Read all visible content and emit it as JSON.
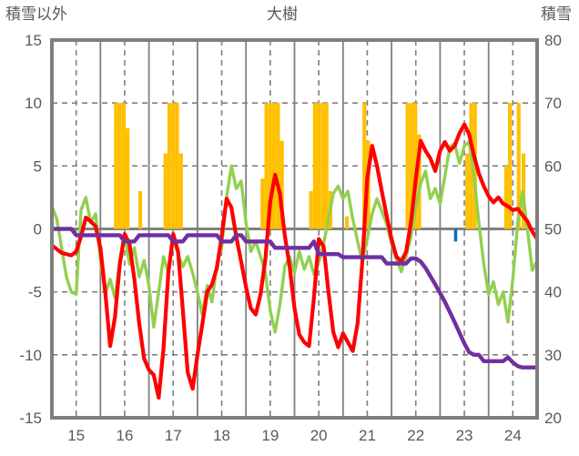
{
  "header": {
    "left_axis_title": "積雪以外",
    "title": "大樹",
    "right_axis_title": "積雪"
  },
  "colors": {
    "text": "#595959",
    "grid": "#808080",
    "border": "#7f7f7f",
    "red_line": "#ff0000",
    "green_line": "#92d050",
    "purple_line": "#7030a0",
    "orange_bars": "#ffc000",
    "blue_bar": "#0070c0",
    "background": "#ffffff"
  },
  "chart_data": {
    "type": "line",
    "title": "大樹",
    "left_axis": {
      "label": "積雪以外",
      "min": -15,
      "max": 15,
      "ticks": [
        "15",
        "10",
        "5",
        "0",
        "-5",
        "-10",
        "-15"
      ],
      "tick_values": [
        15,
        10,
        5,
        0,
        -5,
        -10,
        -15
      ]
    },
    "right_axis": {
      "label": "積雪",
      "min": 20,
      "max": 80,
      "ticks": [
        "80",
        "70",
        "60",
        "50",
        "40",
        "30",
        "20"
      ],
      "tick_values": [
        80,
        70,
        60,
        50,
        40,
        30,
        20
      ]
    },
    "x_axis": {
      "min": 14.5,
      "max": 24.5,
      "tick_labels": [
        "15",
        "16",
        "17",
        "18",
        "19",
        "20",
        "21",
        "22",
        "23",
        "24"
      ],
      "tick_values": [
        15,
        16,
        17,
        18,
        19,
        20,
        21,
        22,
        23,
        24
      ],
      "solid_gridlines_at": [
        15.5,
        16.5,
        17.5,
        18.5,
        19.5,
        20.5,
        21.5,
        22.5,
        23.5
      ],
      "dashed_gridlines_at": [
        15,
        16,
        17,
        18,
        19,
        20,
        21,
        22,
        23,
        24
      ]
    },
    "grid": {
      "horizontal_dashed_at": [
        10,
        5,
        -5,
        -10
      ],
      "zero_line_at": 0
    },
    "x_start": 14.5,
    "x_step": 0.1,
    "series": [
      {
        "name": "red_line",
        "axis": "left",
        "kind": "line",
        "color": "#ff0000",
        "values": [
          -1.3,
          -1.6,
          -1.9,
          -2.0,
          -2.1,
          -1.8,
          -0.6,
          0.9,
          0.6,
          0.2,
          -1.5,
          -5.0,
          -9.3,
          -7.0,
          -2.8,
          -0.4,
          -1.2,
          -4.0,
          -7.5,
          -10.3,
          -11.2,
          -11.6,
          -13.4,
          -9.5,
          -3.5,
          -0.4,
          -1.8,
          -6.5,
          -11.4,
          -12.7,
          -10.0,
          -7.6,
          -5.0,
          -4.4,
          -3.1,
          -0.6,
          2.4,
          1.7,
          -0.6,
          -2.6,
          -4.6,
          -6.3,
          -6.8,
          -5.2,
          -2.4,
          2.2,
          4.3,
          2.8,
          -0.5,
          -3.0,
          -6.3,
          -8.4,
          -9.0,
          -9.3,
          -5.5,
          -0.8,
          -1.4,
          -5.0,
          -8.2,
          -9.4,
          -8.3,
          -9.0,
          -9.7,
          -7.5,
          -2.5,
          4.0,
          6.6,
          5.0,
          3.0,
          1.0,
          -0.8,
          -2.2,
          -2.6,
          -1.8,
          0.5,
          4.0,
          7.0,
          6.2,
          5.6,
          4.6,
          6.2,
          6.9,
          6.2,
          6.6,
          7.6,
          8.3,
          7.5,
          5.8,
          4.4,
          3.4,
          2.6,
          2.1,
          2.5,
          2.0,
          1.8,
          1.5,
          1.6,
          1.1,
          0.6,
          -0.2,
          -0.8
        ]
      },
      {
        "name": "green_line",
        "axis": "left",
        "kind": "line",
        "color": "#92d050",
        "values": [
          1.8,
          0.8,
          -1.5,
          -3.8,
          -5.0,
          -5.2,
          1.5,
          2.5,
          0.5,
          1.2,
          -2.5,
          -5.2,
          -4.0,
          -5.5,
          -2.5,
          -0.5,
          -2.8,
          -1.5,
          -3.8,
          -2.5,
          -4.5,
          -7.8,
          -5.0,
          -2.2,
          -3.5,
          -0.8,
          -2.0,
          -3.0,
          -2.2,
          -3.5,
          -5.0,
          -6.8,
          -4.5,
          -5.8,
          -2.8,
          -1.5,
          2.5,
          5.0,
          3.2,
          3.8,
          0.5,
          -1.8,
          -1.0,
          -2.2,
          -3.5,
          -6.5,
          -8.2,
          -6.0,
          -3.0,
          -2.2,
          -3.5,
          -1.8,
          -3.2,
          -2.2,
          -3.6,
          -2.6,
          -1.2,
          0.8,
          2.8,
          3.4,
          2.4,
          3.0,
          0.8,
          -1.0,
          -2.6,
          -0.8,
          1.2,
          2.4,
          1.4,
          0.4,
          -1.2,
          -2.4,
          -3.4,
          -2.2,
          -0.6,
          1.8,
          3.6,
          4.6,
          2.4,
          3.2,
          2.0,
          4.2,
          6.5,
          6.8,
          5.2,
          6.6,
          6.9,
          4.2,
          0.5,
          -2.8,
          -5.2,
          -4.2,
          -6.0,
          -5.0,
          -7.4,
          -4.0,
          0.5,
          3.0,
          0.0,
          -3.3,
          -2.5
        ]
      },
      {
        "name": "purple_line",
        "axis": "right",
        "kind": "line",
        "color": "#7030a0",
        "values": [
          50,
          50,
          50,
          50,
          50,
          49,
          49,
          49,
          49,
          49,
          49,
          49,
          49,
          49,
          49,
          48,
          48,
          48,
          49,
          49,
          49,
          49,
          49,
          49,
          49,
          48,
          48,
          48,
          49,
          49,
          49,
          49,
          49,
          49,
          49,
          48,
          48,
          48,
          49,
          49,
          48,
          48,
          48,
          48,
          48,
          48,
          47,
          47,
          47,
          47,
          47,
          47,
          47,
          47,
          48,
          46,
          46,
          46,
          46,
          46,
          45.5,
          45.5,
          45.5,
          45.5,
          45.5,
          45.5,
          45.5,
          45.5,
          45.5,
          44.5,
          44.5,
          44.5,
          44.5,
          44.5,
          45.3,
          45.3,
          44.8,
          43.8,
          42.5,
          41.2,
          39.8,
          38.4,
          36.8,
          35.2,
          33.5,
          31.8,
          30.4,
          30.0,
          30.0,
          29.0,
          29.0,
          29.0,
          29.0,
          29.0,
          29.6,
          28.8,
          28.2,
          28.0,
          28.0,
          28.0,
          28.0
        ]
      },
      {
        "name": "orange_bars",
        "axis": "left",
        "kind": "bar",
        "color": "#ffc000",
        "bars": [
          [
            15.82,
            10
          ],
          [
            15.9,
            10
          ],
          [
            15.98,
            10
          ],
          [
            16.06,
            8
          ],
          [
            16.32,
            3
          ],
          [
            16.84,
            6
          ],
          [
            16.92,
            10
          ],
          [
            17.0,
            10
          ],
          [
            17.08,
            10
          ],
          [
            17.16,
            6
          ],
          [
            18.84,
            4
          ],
          [
            18.92,
            10
          ],
          [
            19.0,
            10
          ],
          [
            19.08,
            10
          ],
          [
            19.16,
            10
          ],
          [
            19.24,
            7
          ],
          [
            19.84,
            3
          ],
          [
            19.92,
            10
          ],
          [
            20.0,
            10
          ],
          [
            20.08,
            10
          ],
          [
            20.16,
            10
          ],
          [
            20.24,
            3
          ],
          [
            20.58,
            1
          ],
          [
            20.94,
            10
          ],
          [
            21.02,
            7
          ],
          [
            21.83,
            10
          ],
          [
            21.91,
            10
          ],
          [
            21.99,
            10
          ],
          [
            22.07,
            7.5
          ],
          [
            23.06,
            6
          ],
          [
            23.14,
            10
          ],
          [
            23.22,
            10
          ],
          [
            23.86,
            5
          ],
          [
            23.94,
            10
          ],
          [
            24.12,
            10
          ],
          [
            24.22,
            6
          ]
        ]
      },
      {
        "name": "blue_bar",
        "axis": "left",
        "kind": "bar",
        "color": "#0070c0",
        "bars": [
          [
            22.82,
            -1
          ]
        ]
      }
    ]
  }
}
